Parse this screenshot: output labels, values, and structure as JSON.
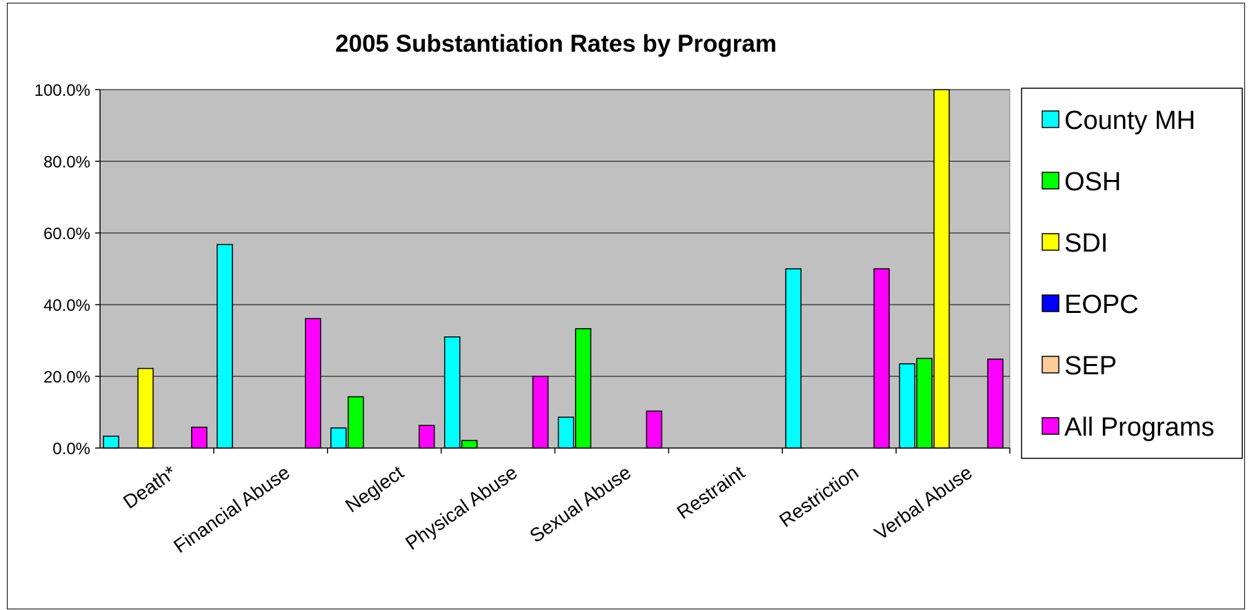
{
  "chart_data": {
    "type": "bar",
    "title": "2005 Substantiation Rates by Program",
    "xlabel": "",
    "ylabel": "",
    "ylim": [
      0,
      100
    ],
    "yticks": [
      "0.0%",
      "20.0%",
      "40.0%",
      "60.0%",
      "80.0%",
      "100.0%"
    ],
    "categories": [
      "Death*",
      "Financial Abuse",
      "Neglect",
      "Physical Abuse",
      "Sexual Abuse",
      "Restraint",
      "Restriction",
      "Verbal Abuse"
    ],
    "series": [
      {
        "name": "County MH",
        "color": "#00ffff",
        "values": [
          3.3,
          56.8,
          5.6,
          31.0,
          8.6,
          0,
          50.0,
          23.5
        ]
      },
      {
        "name": "OSH",
        "color": "#00ff00",
        "values": [
          0,
          0,
          14.3,
          2.1,
          33.3,
          0,
          0,
          25.0
        ]
      },
      {
        "name": "SDI",
        "color": "#ffff00",
        "values": [
          22.2,
          0,
          0,
          0,
          0,
          0,
          0,
          100.0
        ]
      },
      {
        "name": "EOPC",
        "color": "#0000ff",
        "values": [
          0,
          0,
          0,
          0,
          0,
          0,
          0,
          0
        ]
      },
      {
        "name": "SEP",
        "color": "#ffcc99",
        "values": [
          0,
          0,
          0,
          0,
          0,
          0,
          0,
          0
        ]
      },
      {
        "name": "All Programs",
        "color": "#ff00ff",
        "values": [
          5.8,
          36.1,
          6.3,
          20.0,
          10.3,
          0,
          50.0,
          24.8
        ]
      }
    ],
    "plot_background": "#c0c0c0",
    "grid": true,
    "legend_position": "right"
  }
}
